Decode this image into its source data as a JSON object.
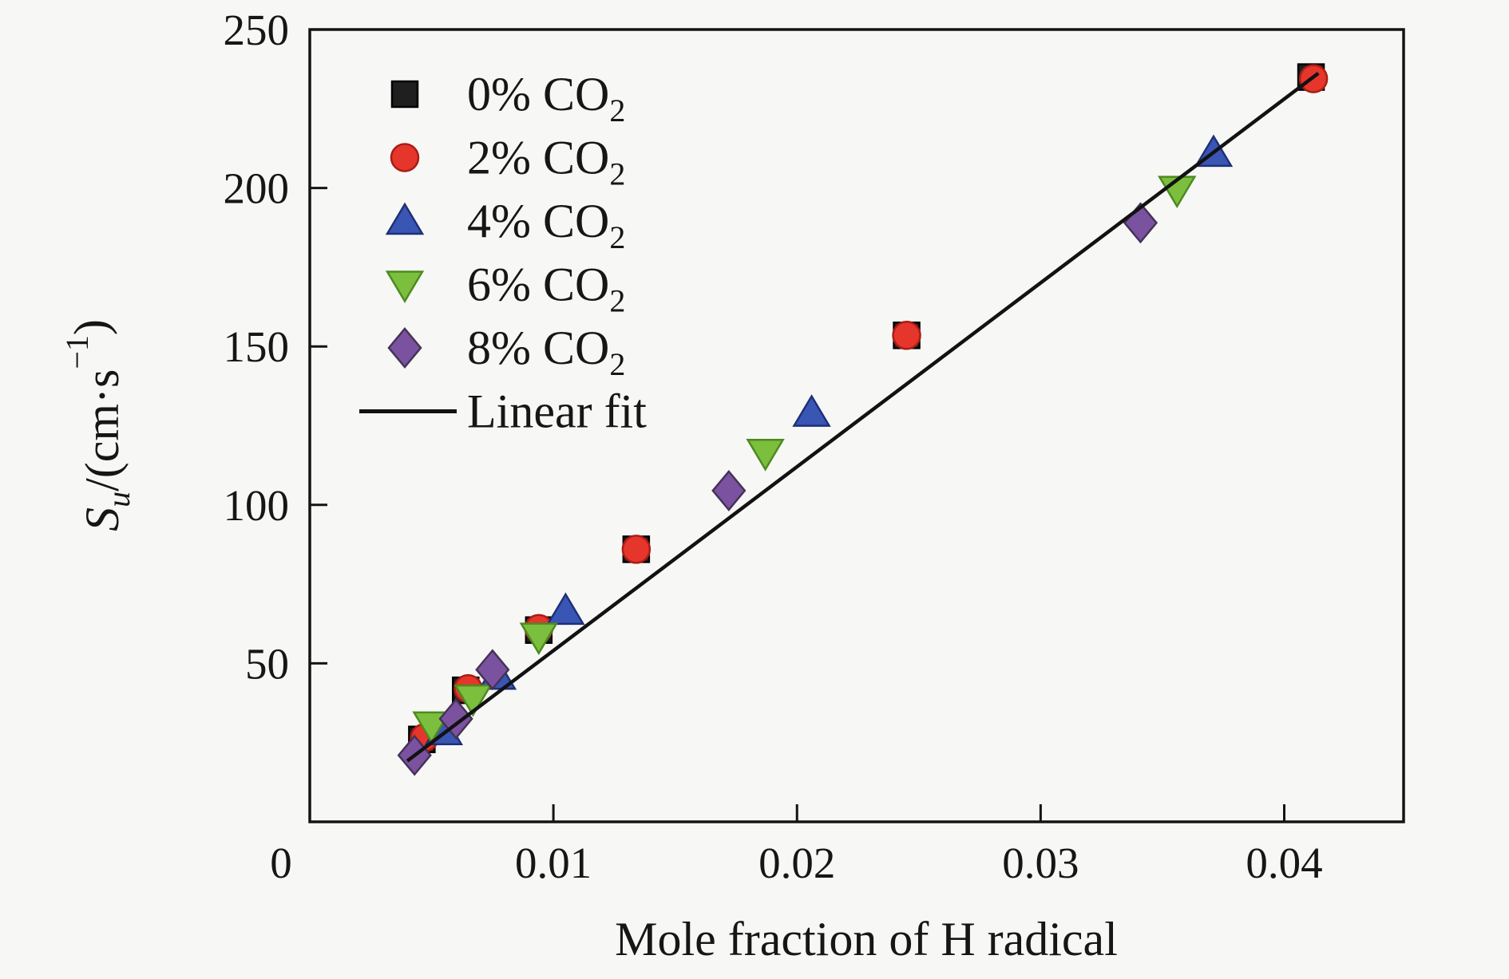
{
  "figure": {
    "background": "#f7f7f5",
    "frame_color": "#141414"
  },
  "chart_data": {
    "type": "scatter",
    "title": "",
    "xlabel": "Mole fraction of H radical",
    "ylabel_parts": [
      {
        "text": "S",
        "style": "italic"
      },
      {
        "text": "u",
        "style": "sub"
      },
      {
        "text": "/(cm·s",
        "style": "normal"
      },
      {
        "text": "−1",
        "style": "super"
      },
      {
        "text": ")",
        "style": "normal"
      }
    ],
    "xlim": [
      0,
      0.0449
    ],
    "ylim": [
      0,
      250
    ],
    "xticks": {
      "values": [
        0,
        0.01,
        0.02,
        0.03,
        0.04
      ],
      "labels": [
        "0",
        "0.01",
        "0.02",
        "0.03",
        "0.04"
      ]
    },
    "yticks": {
      "values": [
        50,
        100,
        150,
        200,
        250
      ],
      "labels": [
        "50",
        "100",
        "150",
        "200",
        "250"
      ]
    },
    "grid": false,
    "legend_position": "upper-left",
    "series": [
      {
        "name": "0% CO2",
        "label": {
          "prefix": "0% CO",
          "sub": "2"
        },
        "marker": "square",
        "color": "#1f1f1f",
        "edge": "#000000",
        "points": [
          [
            0.0411,
            235
          ],
          [
            0.0245,
            153.5
          ],
          [
            0.0134,
            86
          ],
          [
            0.0094,
            60.5
          ],
          [
            0.0064,
            41.5
          ],
          [
            0.0046,
            26
          ]
        ]
      },
      {
        "name": "2% CO2",
        "label": {
          "prefix": "2% CO",
          "sub": "2"
        },
        "marker": "circle",
        "color": "#e6352b",
        "edge": "#a81d16",
        "points": [
          [
            0.0412,
            234.5
          ],
          [
            0.0245,
            153.5
          ],
          [
            0.0134,
            86
          ],
          [
            0.0094,
            61
          ],
          [
            0.0065,
            42
          ],
          [
            0.0047,
            26.5
          ]
        ]
      },
      {
        "name": "4% CO2",
        "label": {
          "prefix": "4% CO",
          "sub": "2"
        },
        "marker": "triangle-up",
        "color": "#3a56b4",
        "edge": "#1e3078",
        "points": [
          [
            0.0371,
            211
          ],
          [
            0.0206,
            129
          ],
          [
            0.0105,
            66.5
          ],
          [
            0.0077,
            46
          ],
          [
            0.0055,
            28.5
          ]
        ]
      },
      {
        "name": "6% CO2",
        "label": {
          "prefix": "6% CO",
          "sub": "2"
        },
        "marker": "triangle-down",
        "color": "#7cbf3e",
        "edge": "#4d8a20",
        "points": [
          [
            0.0356,
            199.5
          ],
          [
            0.0187,
            116.5
          ],
          [
            0.0094,
            58.5
          ],
          [
            0.0067,
            39
          ],
          [
            0.005,
            30.5
          ]
        ]
      },
      {
        "name": "8% CO2",
        "label": {
          "prefix": "8% CO",
          "sub": "2"
        },
        "marker": "diamond",
        "color": "#7b52a0",
        "edge": "#453358",
        "points": [
          [
            0.0341,
            189
          ],
          [
            0.0172,
            104.5
          ],
          [
            0.0075,
            48
          ],
          [
            0.006,
            32.5
          ],
          [
            0.0043,
            21
          ]
        ]
      }
    ],
    "fit_line": {
      "label": "Linear fit",
      "color": "#121212",
      "x1": 0.004,
      "y1": 19.2,
      "x2": 0.0414,
      "y2": 236.2
    }
  }
}
